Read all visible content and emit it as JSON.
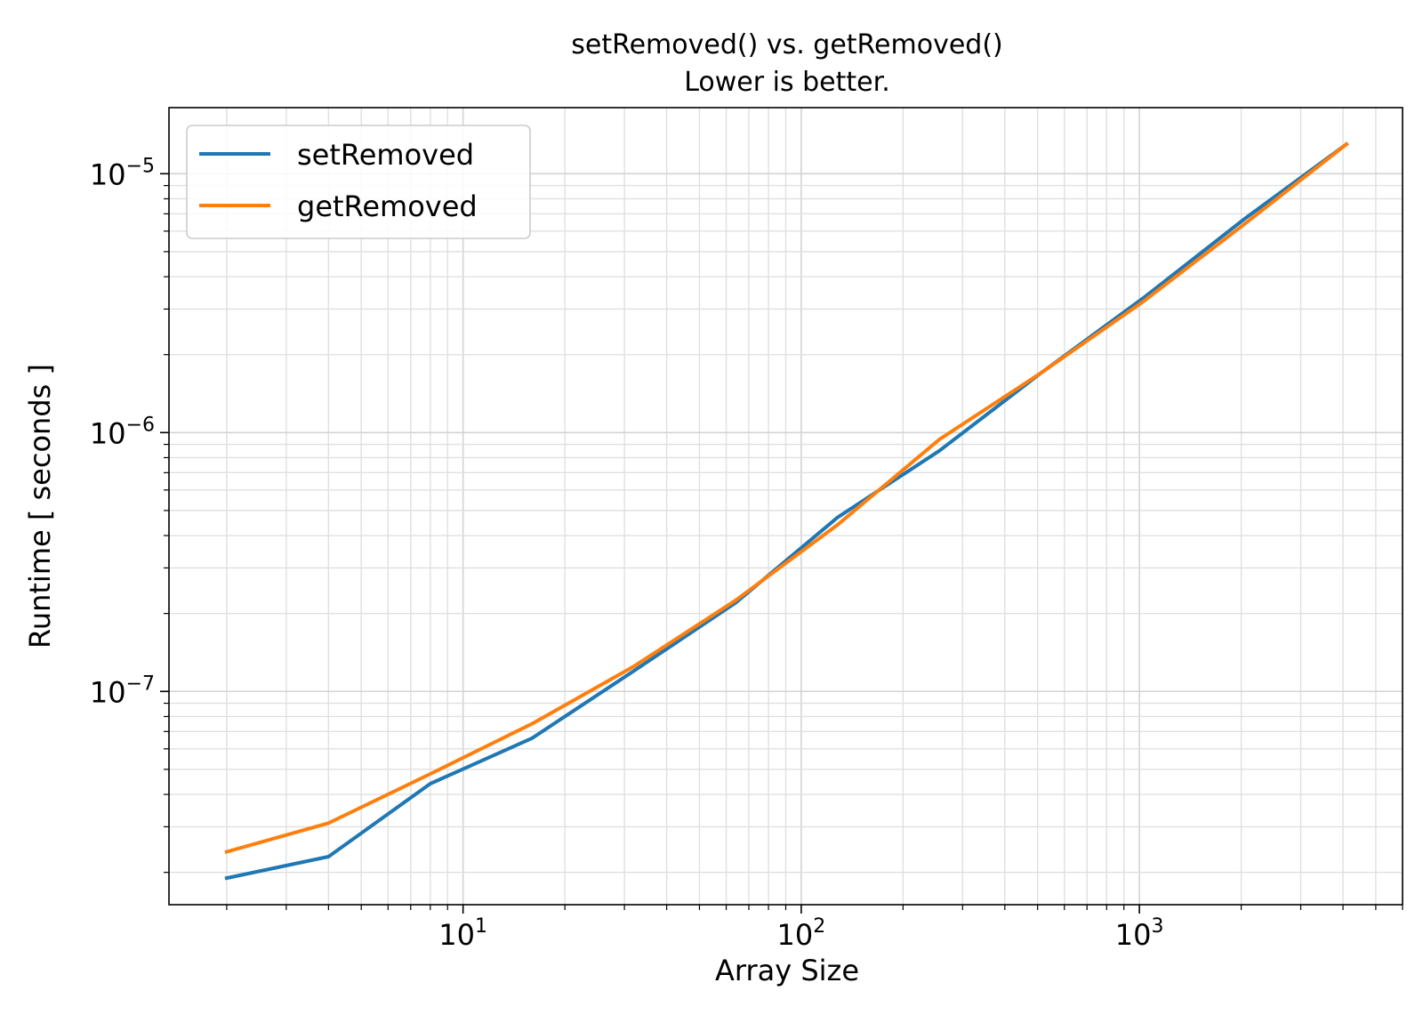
{
  "chart_data": {
    "type": "line",
    "title": "setRemoved() vs. getRemoved()",
    "subtitle": "Lower is better.",
    "xlabel": "Array Size",
    "ylabel": "Runtime [ seconds ]",
    "xscale": "log",
    "yscale": "log",
    "xlim": [
      1.35,
      6000
    ],
    "ylim": [
      1.5e-08,
      1.8e-05
    ],
    "grid": true,
    "grid_minor": true,
    "legend_position": "top-left",
    "x": [
      2,
      4,
      8,
      16,
      32,
      64,
      128,
      256,
      512,
      1024,
      2048,
      4096
    ],
    "series": [
      {
        "name": "setRemoved",
        "color": "#1f77b4",
        "values": [
          1.9e-08,
          2.3e-08,
          4.4e-08,
          6.6e-08,
          1.2e-07,
          2.2e-07,
          4.7e-07,
          8.5e-07,
          1.7e-06,
          3.3e-06,
          6.7e-06,
          1.3e-05
        ]
      },
      {
        "name": "getRemoved",
        "color": "#ff7f0e",
        "values": [
          2.4e-08,
          3.1e-08,
          4.8e-08,
          7.5e-08,
          1.25e-07,
          2.25e-07,
          4.4e-07,
          9.4e-07,
          1.7e-06,
          3.2e-06,
          6.4e-06,
          1.3e-05
        ]
      }
    ],
    "x_ticks": [
      {
        "value": 10,
        "base": "10",
        "exp": "1"
      },
      {
        "value": 100,
        "base": "10",
        "exp": "2"
      },
      {
        "value": 1000,
        "base": "10",
        "exp": "3"
      }
    ],
    "y_ticks": [
      {
        "value": 1e-07,
        "base": "10",
        "exp": "−7"
      },
      {
        "value": 1e-06,
        "base": "10",
        "exp": "−6"
      },
      {
        "value": 1e-05,
        "base": "10",
        "exp": "−5"
      }
    ]
  }
}
